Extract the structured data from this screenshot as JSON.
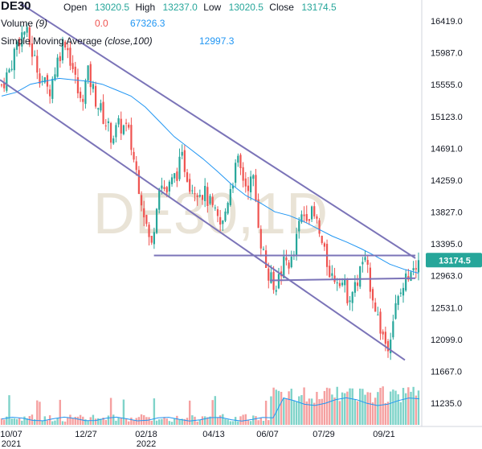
{
  "header": {
    "symbol": "DE30",
    "open_label": "Open",
    "open": "13020.5",
    "high_label": "High",
    "high": "13237.0",
    "low_label": "Low",
    "low": "13020.5",
    "close_label": "Close",
    "close": "13174.5",
    "volume_label": "Volume",
    "volume_param": "(9)",
    "volume_value_1": "0.0",
    "volume_value_2": "67326.3",
    "sma_label": "Simple Moving Average",
    "sma_param": "(close,100)",
    "sma_value": "12997.3"
  },
  "watermark": "DE30,1D",
  "price_tag": "13174.5",
  "colors": {
    "up": "#26a69a",
    "down": "#ef5350",
    "sma": "#2196f3",
    "trendline": "#7b74b8",
    "volume": "#90bce8",
    "tag": "#26a69a"
  },
  "chart_data": {
    "type": "candlestick",
    "title": "DE30",
    "interval": "1D",
    "y_ticks": [
      "16419.0",
      "15987.0",
      "15555.0",
      "15123.0",
      "14691.0",
      "14259.0",
      "13827.0",
      "13395.0",
      "12963.0",
      "12531.0",
      "12099.0",
      "11667.0",
      "11235.0"
    ],
    "ylim": [
      11150,
      16550
    ],
    "x_ticks": [
      {
        "label": "10/07",
        "sub": "2021"
      },
      {
        "label": "12/27",
        "sub": ""
      },
      {
        "label": "02/18",
        "sub": "2022"
      },
      {
        "label": "04/13",
        "sub": ""
      },
      {
        "label": "06/07",
        "sub": ""
      },
      {
        "label": "07/29",
        "sub": ""
      },
      {
        "label": "09/21",
        "sub": ""
      }
    ],
    "path": [
      15550,
      15750,
      16150,
      16300,
      15950,
      15650,
      15450,
      15850,
      16200,
      15800,
      15300,
      15700,
      15350,
      15100,
      14850,
      15000,
      14950,
      14450,
      13900,
      13300,
      14250,
      14100,
      14300,
      14550,
      14200,
      14150,
      14050,
      13800,
      13600,
      14150,
      14500,
      14200,
      14250,
      13400,
      12900,
      12850,
      13150,
      13150,
      13750,
      13850,
      13700,
      13250,
      12950,
      12950,
      12700,
      12800,
      13200,
      12800,
      12300,
      12000,
      12500,
      12800,
      13100,
      13174.5
    ],
    "sma_path": [
      15400,
      15450,
      15560,
      15600,
      15640,
      15620,
      15600,
      15560,
      15480,
      15400,
      15250,
      15050,
      14850,
      14700,
      14550,
      14380,
      14200,
      14050,
      13950,
      13830,
      13780,
      13700,
      13600,
      13500,
      13420,
      13330,
      13230,
      13120,
      13050,
      12997.3
    ],
    "last_close": 13174.5,
    "trendlines": [
      {
        "name": "upper-channel",
        "from": [
          0.05,
          16650
        ],
        "to": [
          0.985,
          13200
        ]
      },
      {
        "name": "lower-channel",
        "from": [
          0.0,
          15620
        ],
        "to": [
          0.96,
          11820
        ]
      },
      {
        "name": "resistance",
        "from": [
          0.365,
          13237
        ],
        "to": [
          0.985,
          13237
        ]
      },
      {
        "name": "support",
        "from": [
          0.64,
          12900
        ],
        "to": [
          0.985,
          12930
        ]
      }
    ]
  }
}
